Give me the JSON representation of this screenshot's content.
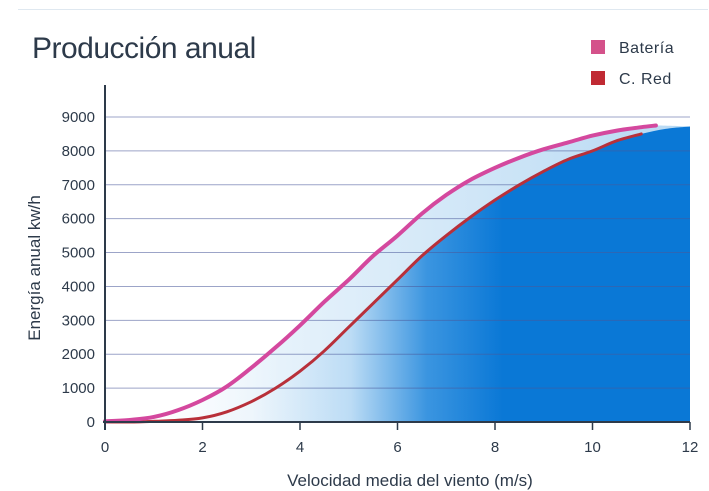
{
  "chart_data": {
    "type": "line",
    "title": "Producción anual",
    "xlabel": "Velocidad media del viento (m/s)",
    "ylabel": "Energía anual kw/h",
    "xlim": [
      0,
      12
    ],
    "ylim": [
      0,
      9000
    ],
    "xticks": [
      "0",
      "2",
      "4",
      "6",
      "8",
      "10",
      "12"
    ],
    "yticks": [
      "0",
      "1000",
      "2000",
      "3000",
      "4000",
      "5000",
      "6000",
      "7000",
      "8000",
      "9000"
    ],
    "grid": true,
    "legend_position": "top-right",
    "series": [
      {
        "name": "Batería",
        "color": "#d4489e",
        "x": [
          0,
          0.5,
          1,
          1.5,
          2,
          2.5,
          3,
          3.5,
          4,
          4.5,
          5,
          5.5,
          6,
          6.5,
          7,
          7.5,
          8,
          8.5,
          9,
          9.5,
          10,
          10.5,
          11,
          11.3
        ],
        "y": [
          20,
          60,
          150,
          350,
          650,
          1050,
          1600,
          2200,
          2850,
          3550,
          4200,
          4900,
          5500,
          6150,
          6700,
          7150,
          7500,
          7800,
          8050,
          8250,
          8450,
          8600,
          8700,
          8750
        ]
      },
      {
        "name": "C. Red",
        "color": "#b8303a",
        "x": [
          0,
          0.5,
          1,
          1.5,
          2,
          2.5,
          3,
          3.5,
          4,
          4.5,
          5,
          5.5,
          6,
          6.5,
          7,
          7.5,
          8,
          8.5,
          9,
          9.5,
          10,
          10.5,
          11
        ],
        "y": [
          0,
          0,
          20,
          50,
          120,
          300,
          600,
          1000,
          1500,
          2100,
          2800,
          3500,
          4200,
          4900,
          5500,
          6050,
          6550,
          7000,
          7400,
          7750,
          8000,
          8300,
          8500
        ]
      }
    ],
    "colors": {
      "fill_light": "#d6eaf8",
      "fill_dark": "#0a78d6",
      "grid": "#4a5a9a",
      "axis": "#2d3a4a"
    }
  }
}
